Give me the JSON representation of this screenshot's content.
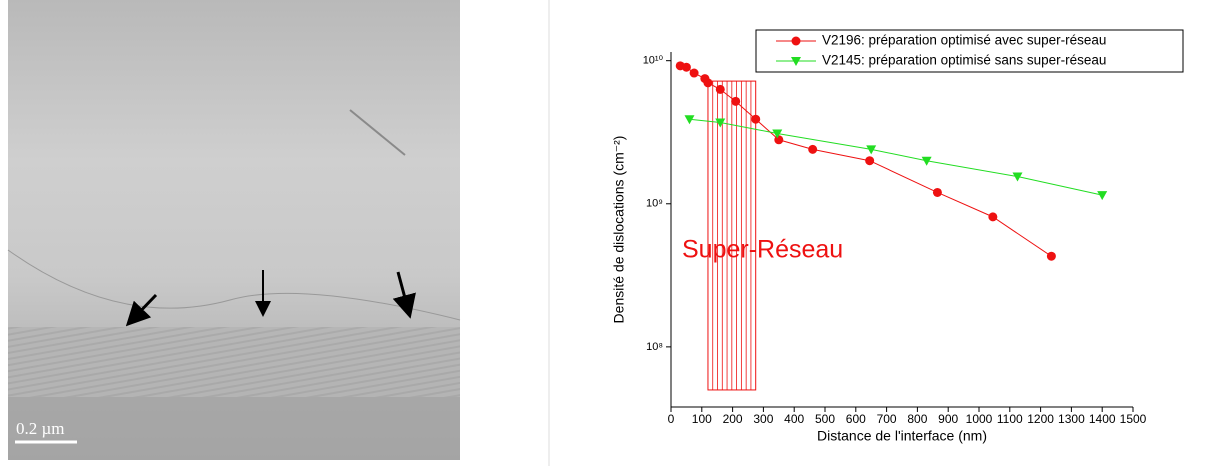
{
  "image": {
    "scale_bar": "0.2 µm"
  },
  "chart_data": {
    "type": "line",
    "x_label": "Distance de l'interface (nm)",
    "y_label": "Densité de dislocations (cm⁻²)",
    "xlim": [
      0,
      1500
    ],
    "xticks": [
      0,
      100,
      200,
      300,
      400,
      500,
      600,
      700,
      800,
      900,
      1000,
      1100,
      1200,
      1300,
      1400,
      1500
    ],
    "ylim": [
      38000000,
      11500000000
    ],
    "yscale": "log",
    "yticks": [
      {
        "value": 100000000,
        "label": "10⁸"
      },
      {
        "value": 1000000000,
        "label": "10⁹"
      },
      {
        "value": 10000000000,
        "label": "10¹⁰"
      }
    ],
    "legend": "upper right",
    "series": [
      {
        "name": "V2196: préparation optimisé avec super-réseau",
        "color": "#ee1111",
        "marker": "circle",
        "x": [
          30,
          50,
          75,
          110,
          120,
          160,
          210,
          275,
          350,
          460,
          645,
          865,
          1045,
          1235
        ],
        "values": [
          9200000000,
          9000000000,
          8200000000,
          7500000000,
          7000000000,
          6300000000,
          5200000000,
          3900000000,
          2800000000,
          2400000000,
          2000000000,
          1200000000,
          810000000,
          430000000
        ]
      },
      {
        "name": "V2145: préparation optimisé sans super-réseau",
        "color": "#22dd22",
        "marker": "triangle-down",
        "x": [
          60,
          160,
          345,
          650,
          830,
          1125,
          1400
        ],
        "values": [
          3900000000,
          3700000000,
          3100000000,
          2400000000,
          2000000000,
          1550000000,
          1150000000
        ]
      }
    ],
    "region": {
      "label": "Super-Réseau",
      "color": "#ee1111",
      "xlim": [
        120,
        275
      ],
      "ylim": [
        50000000,
        7200000000
      ]
    }
  }
}
